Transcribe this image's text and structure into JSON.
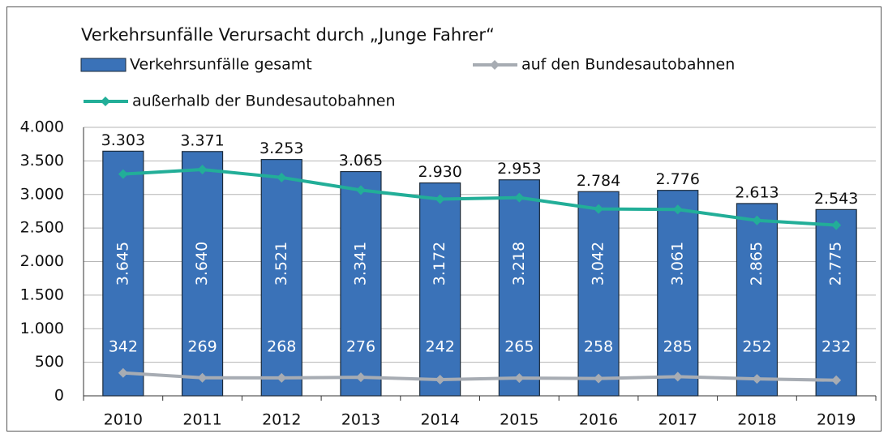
{
  "chart_data": {
    "type": "bar",
    "title": "Verkehrsunfälle Verursacht durch „Junge Fahrer“",
    "categories": [
      "2010",
      "2011",
      "2012",
      "2013",
      "2014",
      "2015",
      "2016",
      "2017",
      "2018",
      "2019"
    ],
    "series": [
      {
        "name": "Verkehrsunfälle gesamt",
        "type": "bar",
        "color": "#3a72b8",
        "values": [
          3645,
          3640,
          3521,
          3341,
          3172,
          3218,
          3042,
          3061,
          2865,
          2775
        ],
        "value_labels": [
          "3.645",
          "3.640",
          "3.521",
          "3.341",
          "3.172",
          "3.218",
          "3.042",
          "3.061",
          "2.865",
          "2.775"
        ]
      },
      {
        "name": "auf den Bundesautobahnen",
        "type": "line",
        "color": "#a7acb3",
        "values": [
          342,
          269,
          268,
          276,
          242,
          265,
          258,
          285,
          252,
          232
        ]
      },
      {
        "name": "außerhalb der Bundesautobahnen",
        "type": "line",
        "color": "#22ae98",
        "values": [
          3303,
          3371,
          3253,
          3065,
          2930,
          2953,
          2784,
          2776,
          2613,
          2543
        ],
        "value_labels": [
          "3.303",
          "3.371",
          "3.253",
          "3.065",
          "2.930",
          "2.953",
          "2.784",
          "2.776",
          "2.613",
          "2.543"
        ]
      }
    ],
    "ylim": [
      0,
      4000
    ],
    "yticks": [
      0,
      500,
      {
        "value": 1000,
        "label": "1.000"
      },
      {
        "value": 1500,
        "label": "1.500"
      },
      {
        "value": 2000,
        "label": "2.000"
      },
      {
        "value": 2500,
        "label": "2.500"
      },
      {
        "value": 3000,
        "label": "3.000"
      },
      {
        "value": 3500,
        "label": "3.500"
      },
      {
        "value": 4000,
        "label": "4.000"
      }
    ],
    "grid": true
  }
}
